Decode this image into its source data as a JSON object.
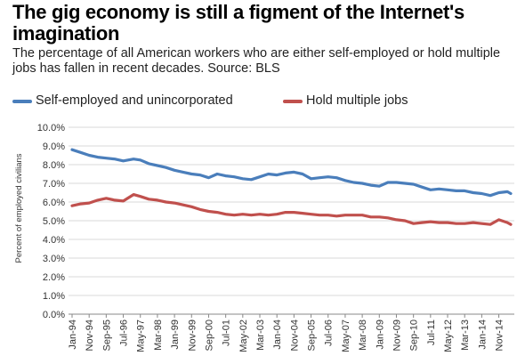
{
  "title": "The gig economy is still a figment of the Internet's imagination",
  "subtitle": "The percentage of all American workers who are either self-employed or hold multiple jobs has fallen in recent decades. Source: BLS",
  "chart_data": {
    "type": "line",
    "ylabel": "Percent of employed civilians",
    "ylim": [
      0,
      10
    ],
    "y_ticks": [
      "0.0%",
      "1.0%",
      "2.0%",
      "3.0%",
      "4.0%",
      "5.0%",
      "6.0%",
      "7.0%",
      "8.0%",
      "9.0%",
      "10.0%"
    ],
    "x_range": [
      "1994-01",
      "2015-06"
    ],
    "x_ticks": [
      "Jan-94",
      "Nov-94",
      "Sep-95",
      "Jul-96",
      "May-97",
      "Mar-98",
      "Jan-99",
      "Nov-99",
      "Sep-00",
      "Jul-01",
      "May-02",
      "Mar-03",
      "Jan-04",
      "Nov-04",
      "Sep-05",
      "Jul-06",
      "May-07",
      "Mar-08",
      "Jan-09",
      "Nov-09",
      "Sep-10",
      "Jul-11",
      "May-12",
      "Mar-13",
      "Jan-14",
      "Nov-14"
    ],
    "grid": true,
    "legend_position": "top-left",
    "series": [
      {
        "name": "Self-employed and unincorporated",
        "color": "#4a7ebb",
        "points": [
          [
            "1994-01",
            8.8
          ],
          [
            "1994-06",
            8.65
          ],
          [
            "1994-11",
            8.5
          ],
          [
            "1995-04",
            8.4
          ],
          [
            "1995-09",
            8.35
          ],
          [
            "1996-02",
            8.3
          ],
          [
            "1996-07",
            8.2
          ],
          [
            "1997-01",
            8.3
          ],
          [
            "1997-05",
            8.25
          ],
          [
            "1997-10",
            8.05
          ],
          [
            "1998-03",
            7.95
          ],
          [
            "1998-08",
            7.85
          ],
          [
            "1999-01",
            7.7
          ],
          [
            "1999-06",
            7.6
          ],
          [
            "1999-11",
            7.5
          ],
          [
            "2000-04",
            7.45
          ],
          [
            "2000-09",
            7.3
          ],
          [
            "2001-02",
            7.5
          ],
          [
            "2001-07",
            7.4
          ],
          [
            "2001-12",
            7.35
          ],
          [
            "2002-05",
            7.25
          ],
          [
            "2002-10",
            7.2
          ],
          [
            "2003-03",
            7.35
          ],
          [
            "2003-08",
            7.5
          ],
          [
            "2004-01",
            7.45
          ],
          [
            "2004-06",
            7.55
          ],
          [
            "2004-11",
            7.6
          ],
          [
            "2005-04",
            7.5
          ],
          [
            "2005-09",
            7.25
          ],
          [
            "2006-02",
            7.3
          ],
          [
            "2006-07",
            7.35
          ],
          [
            "2006-12",
            7.3
          ],
          [
            "2007-05",
            7.15
          ],
          [
            "2007-10",
            7.05
          ],
          [
            "2008-03",
            7.0
          ],
          [
            "2008-08",
            6.9
          ],
          [
            "2009-01",
            6.85
          ],
          [
            "2009-06",
            7.05
          ],
          [
            "2009-11",
            7.05
          ],
          [
            "2010-04",
            7.0
          ],
          [
            "2010-09",
            6.95
          ],
          [
            "2011-02",
            6.8
          ],
          [
            "2011-07",
            6.65
          ],
          [
            "2011-12",
            6.7
          ],
          [
            "2012-05",
            6.65
          ],
          [
            "2012-10",
            6.6
          ],
          [
            "2013-03",
            6.6
          ],
          [
            "2013-08",
            6.5
          ],
          [
            "2014-01",
            6.45
          ],
          [
            "2014-06",
            6.35
          ],
          [
            "2014-11",
            6.5
          ],
          [
            "2015-04",
            6.55
          ],
          [
            "2015-06",
            6.45
          ]
        ]
      },
      {
        "name": "Hold multiple jobs",
        "color": "#c0504d",
        "points": [
          [
            "1994-01",
            5.8
          ],
          [
            "1994-06",
            5.9
          ],
          [
            "1994-11",
            5.95
          ],
          [
            "1995-04",
            6.1
          ],
          [
            "1995-09",
            6.2
          ],
          [
            "1996-02",
            6.1
          ],
          [
            "1996-07",
            6.05
          ],
          [
            "1997-01",
            6.4
          ],
          [
            "1997-05",
            6.3
          ],
          [
            "1997-10",
            6.15
          ],
          [
            "1998-03",
            6.1
          ],
          [
            "1998-08",
            6.0
          ],
          [
            "1999-01",
            5.95
          ],
          [
            "1999-06",
            5.85
          ],
          [
            "1999-11",
            5.75
          ],
          [
            "2000-04",
            5.6
          ],
          [
            "2000-09",
            5.5
          ],
          [
            "2001-02",
            5.45
          ],
          [
            "2001-07",
            5.35
          ],
          [
            "2001-12",
            5.3
          ],
          [
            "2002-05",
            5.35
          ],
          [
            "2002-10",
            5.3
          ],
          [
            "2003-03",
            5.35
          ],
          [
            "2003-08",
            5.3
          ],
          [
            "2004-01",
            5.35
          ],
          [
            "2004-06",
            5.45
          ],
          [
            "2004-11",
            5.45
          ],
          [
            "2005-04",
            5.4
          ],
          [
            "2005-09",
            5.35
          ],
          [
            "2006-02",
            5.3
          ],
          [
            "2006-07",
            5.3
          ],
          [
            "2006-12",
            5.25
          ],
          [
            "2007-05",
            5.3
          ],
          [
            "2007-10",
            5.3
          ],
          [
            "2008-03",
            5.3
          ],
          [
            "2008-08",
            5.2
          ],
          [
            "2009-01",
            5.2
          ],
          [
            "2009-06",
            5.15
          ],
          [
            "2009-11",
            5.05
          ],
          [
            "2010-04",
            5.0
          ],
          [
            "2010-09",
            4.85
          ],
          [
            "2011-02",
            4.9
          ],
          [
            "2011-07",
            4.95
          ],
          [
            "2011-12",
            4.9
          ],
          [
            "2012-05",
            4.9
          ],
          [
            "2012-10",
            4.85
          ],
          [
            "2013-03",
            4.85
          ],
          [
            "2013-08",
            4.9
          ],
          [
            "2014-01",
            4.85
          ],
          [
            "2014-06",
            4.8
          ],
          [
            "2014-11",
            5.05
          ],
          [
            "2015-04",
            4.9
          ],
          [
            "2015-06",
            4.8
          ]
        ]
      }
    ]
  }
}
